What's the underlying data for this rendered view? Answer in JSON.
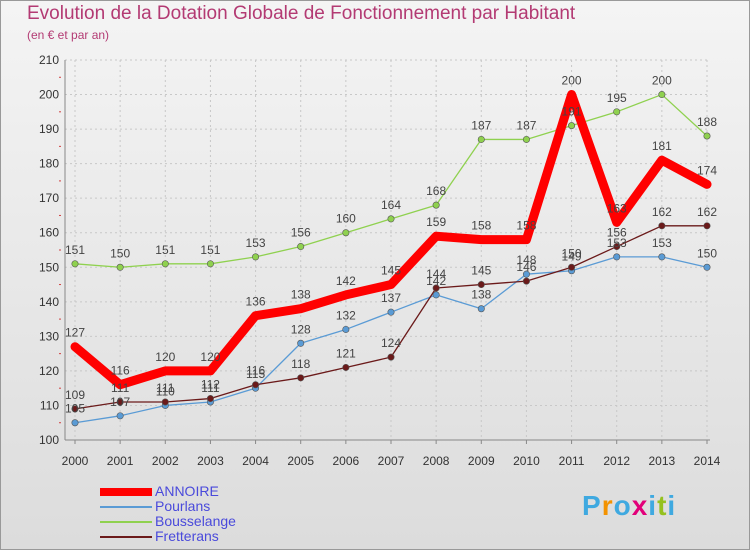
{
  "title": "Evolution de la Dotation Globale de Fonctionnement par Habitant",
  "subtitle": "(en € et par an)",
  "logo": {
    "letters": [
      "P",
      "r",
      "o",
      "x",
      "i",
      "t",
      "i"
    ],
    "colors": [
      "#3fa9e0",
      "#f39200",
      "#3fa9e0",
      "#e2007a",
      "#3fa9e0",
      "#95c11f",
      "#3fa9e0"
    ]
  },
  "chart_data": {
    "type": "line",
    "title": "Evolution de la Dotation Globale de Fonctionnement par Habitant",
    "subtitle": "(en € et par an)",
    "x": [
      "2000",
      "2001",
      "2002",
      "2003",
      "2004",
      "2005",
      "2006",
      "2007",
      "2008",
      "2009",
      "2010",
      "2011",
      "2012",
      "2013",
      "2014"
    ],
    "ylim": [
      100,
      210
    ],
    "yticks": [
      100,
      110,
      120,
      130,
      140,
      150,
      160,
      170,
      180,
      190,
      200,
      210
    ],
    "grid": true,
    "legend_position": "bottom-left",
    "series": [
      {
        "name": "ANNOIRE",
        "color": "#ff0000",
        "values": [
          127,
          116,
          120,
          120,
          136,
          138,
          142,
          145,
          159,
          158,
          158,
          200,
          163,
          181,
          174
        ]
      },
      {
        "name": "Pourlans",
        "color": "#5a9bd5",
        "values": [
          105,
          107,
          110,
          111,
          115,
          128,
          132,
          137,
          142,
          138,
          148,
          149,
          153,
          153,
          150
        ]
      },
      {
        "name": "Bousselange",
        "color": "#8fd14f",
        "values": [
          151,
          150,
          151,
          151,
          153,
          156,
          160,
          164,
          168,
          187,
          187,
          191,
          195,
          200,
          188
        ]
      },
      {
        "name": "Fretterans",
        "color": "#6b1a1a",
        "values": [
          109,
          111,
          111,
          112,
          116,
          118,
          121,
          124,
          144,
          145,
          146,
          150,
          156,
          162,
          162
        ]
      }
    ]
  }
}
